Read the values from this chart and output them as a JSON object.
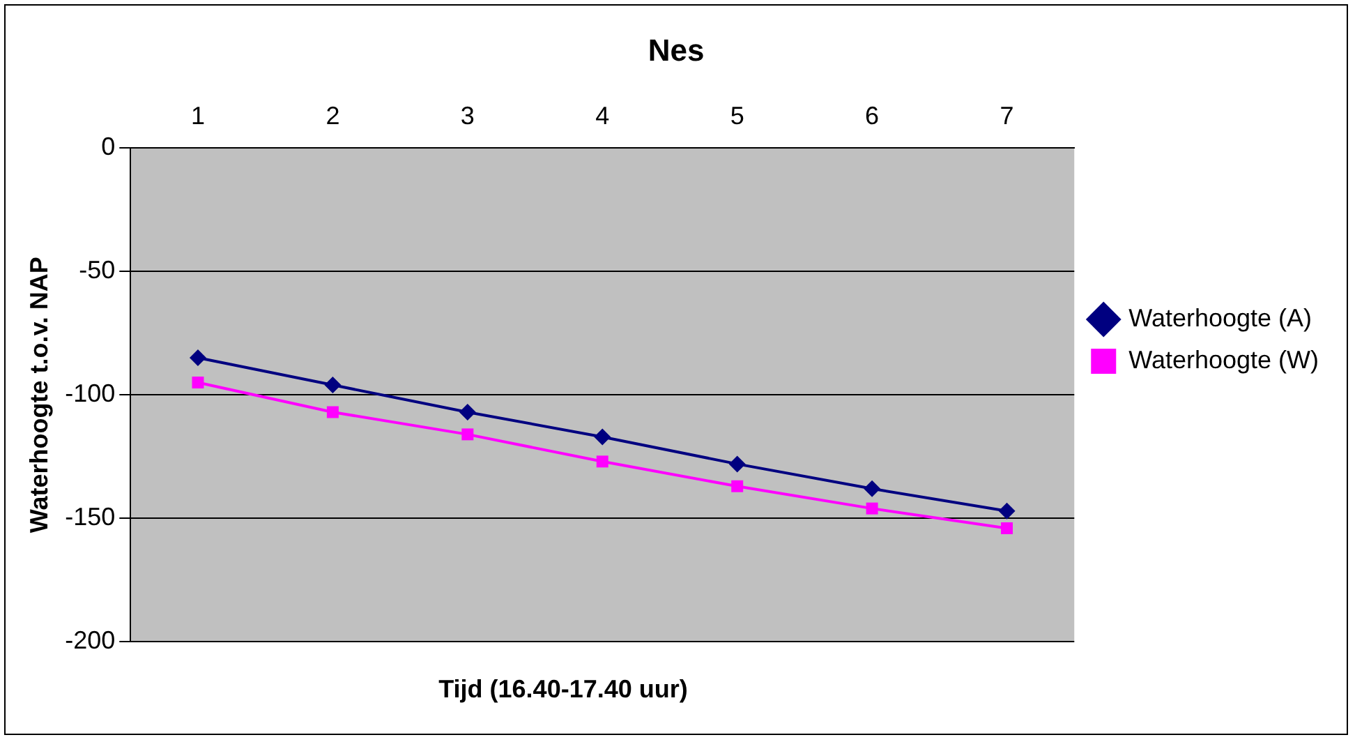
{
  "chart_data": {
    "type": "line",
    "title": "Nes",
    "xlabel": "Tijd (16.40-17.40 uur)",
    "ylabel": "Waterhoogte t.o.v. NAP",
    "categories": [
      "1",
      "2",
      "3",
      "4",
      "5",
      "6",
      "7"
    ],
    "series": [
      {
        "name": "Waterhoogte (A)",
        "color": "#000080",
        "marker": "diamond",
        "values": [
          -85,
          -96,
          -107,
          -117,
          -128,
          -138,
          -147
        ]
      },
      {
        "name": "Waterhoogte (W)",
        "color": "#ff00ff",
        "marker": "square",
        "values": [
          -95,
          -107,
          -116,
          -127,
          -137,
          -146,
          -154
        ]
      }
    ],
    "ylim": [
      -200,
      0
    ],
    "yticks": [
      0,
      -50,
      -100,
      -150,
      -200
    ],
    "grid": "y",
    "legend": "right",
    "line_style": "solid"
  }
}
